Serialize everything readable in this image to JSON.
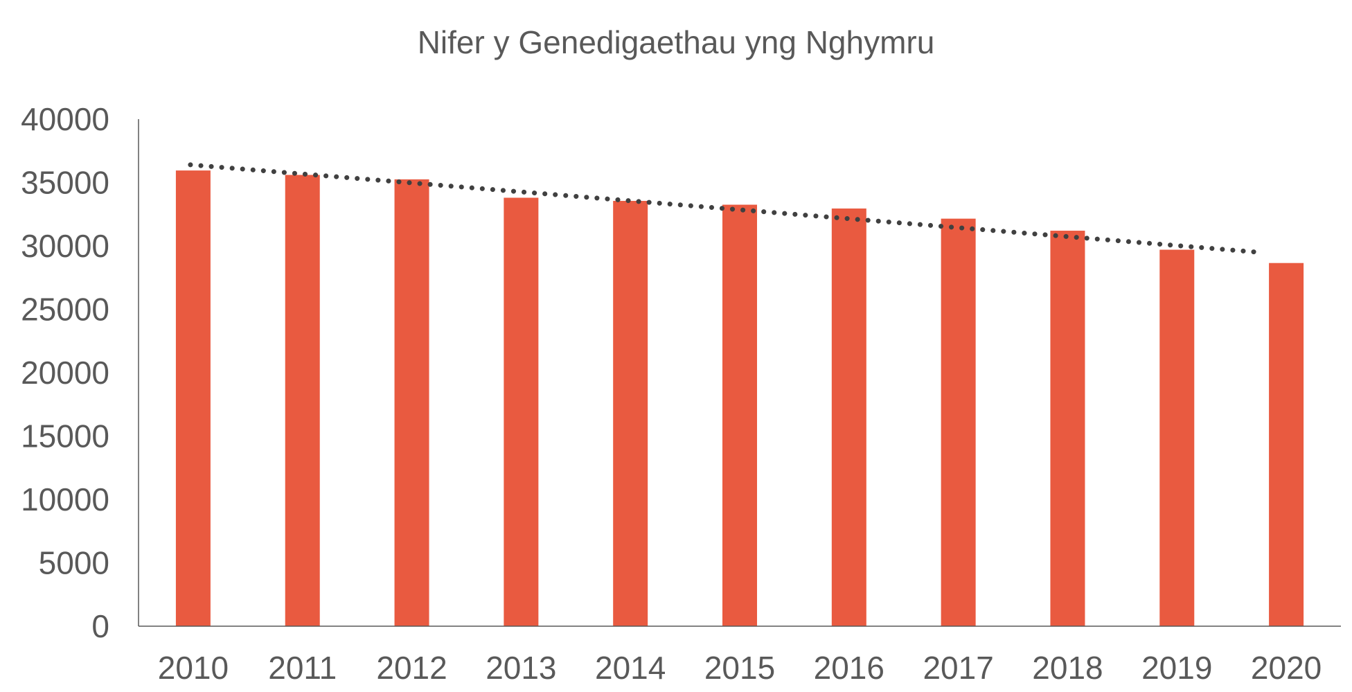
{
  "chart_data": {
    "type": "bar",
    "title": "Nifer y Genedigaethau yng Nghymru",
    "xlabel": "",
    "ylabel": "",
    "categories": [
      "2010",
      "2011",
      "2012",
      "2013",
      "2014",
      "2015",
      "2016",
      "2017",
      "2018",
      "2019",
      "2020"
    ],
    "values": [
      35950,
      35600,
      35250,
      33800,
      33550,
      33250,
      32950,
      32150,
      31200,
      29700,
      28650
    ],
    "ylim": [
      0,
      40000
    ],
    "yticks": [
      "0",
      "5000",
      "10000",
      "15000",
      "20000",
      "25000",
      "30000",
      "35000",
      "40000"
    ],
    "grid": false,
    "legend": "none",
    "trendline": {
      "type": "linear",
      "style": "dotted",
      "start_value": 36400,
      "end_value": 29500
    },
    "colors": {
      "bar": "#E95A40",
      "trendline": "#404040",
      "axis": "#595959",
      "text": "#595959"
    }
  }
}
